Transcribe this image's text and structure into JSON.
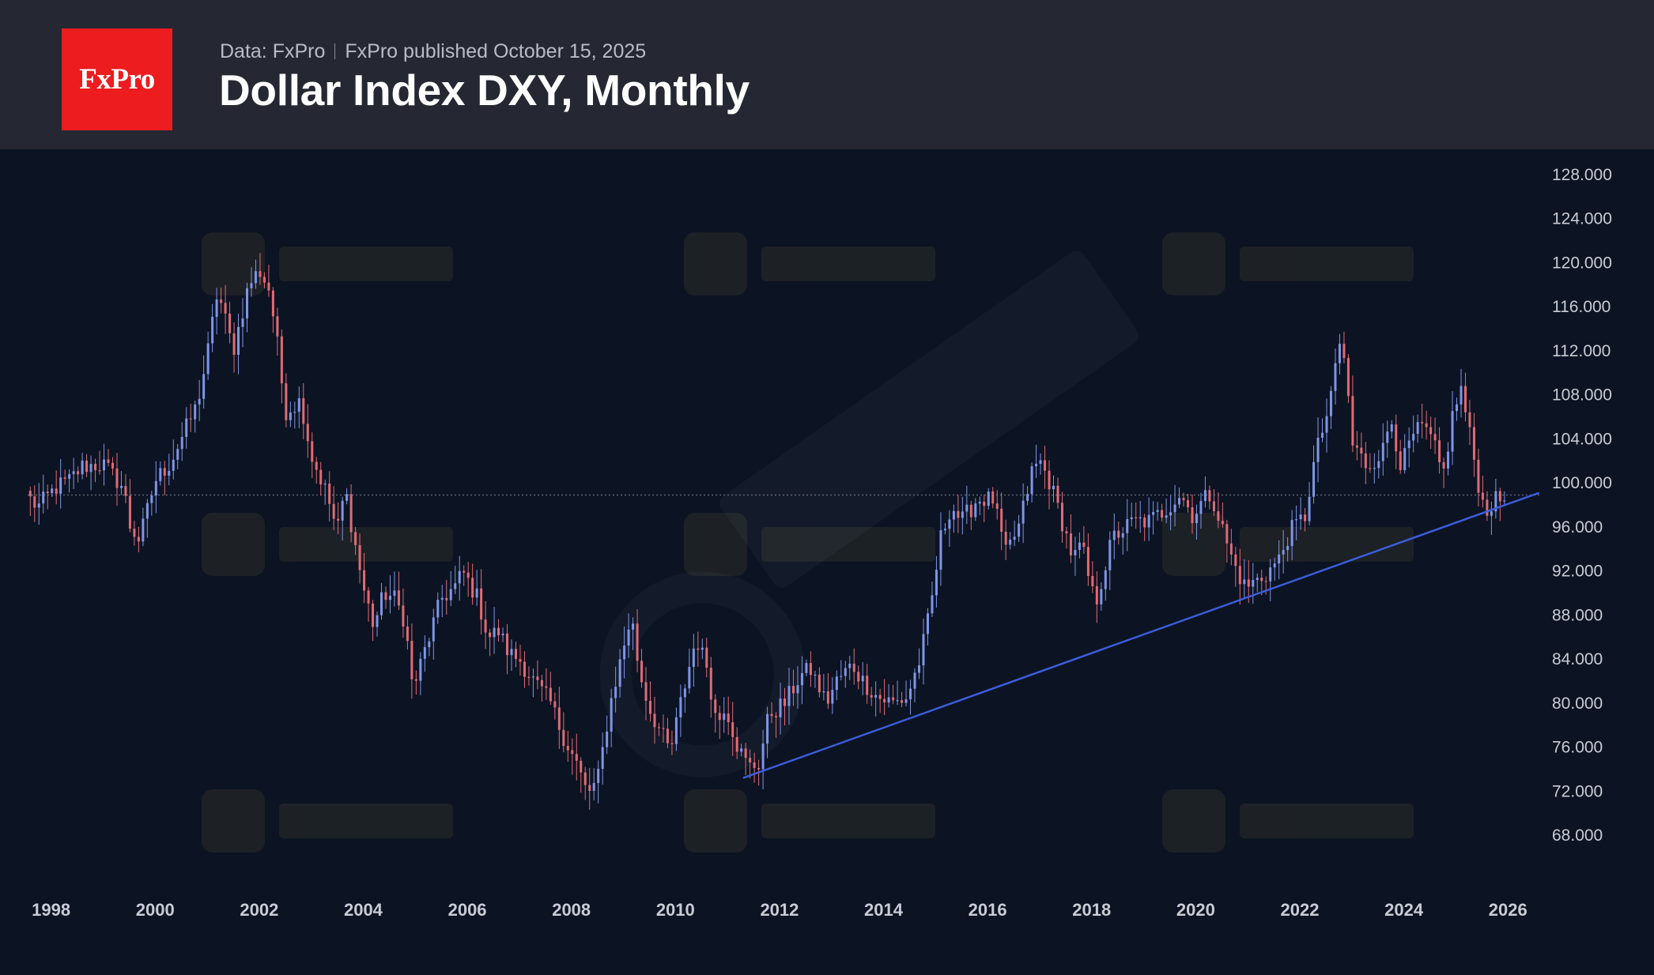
{
  "header": {
    "logo_text": "FxPro",
    "data_source": "Data: FxPro",
    "published": "FxPro published October 15, 2025",
    "title": "Dollar Index DXY, Monthly"
  },
  "colors": {
    "background": "#0c1423",
    "header_bg": "#252832",
    "logo_red": "#ec1c1f",
    "up_candle": "#7f95e6",
    "down_candle": "#e06b74",
    "trendline": "#3d5ee0",
    "reference_line": "#6b7080"
  },
  "chart_data": {
    "type": "candlestick",
    "title": "Dollar Index DXY, Monthly",
    "timeframe": "Monthly",
    "xlim": [
      1997.55,
      2026.65
    ],
    "ylim": [
      65.5,
      129.5
    ],
    "x_tick_labels": [
      "1998",
      "2000",
      "2002",
      "2004",
      "2006",
      "2008",
      "2010",
      "2012",
      "2014",
      "2016",
      "2018",
      "2020",
      "2022",
      "2024",
      "2026"
    ],
    "y_tick_labels": [
      "128.000",
      "124.000",
      "120.000",
      "116.000",
      "112.000",
      "108.000",
      "104.000",
      "100.000",
      "96.000",
      "92.000",
      "88.000",
      "84.000",
      "80.000",
      "76.000",
      "72.000",
      "68.000"
    ],
    "grid": false,
    "reference_line": {
      "value": 98.9,
      "style": "dotted"
    },
    "trendline": {
      "from": [
        2011.3,
        73.2
      ],
      "to": [
        2026.6,
        99.1
      ]
    },
    "close_path": [
      [
        1997.6,
        98.5
      ],
      [
        1997.75,
        97.8
      ],
      [
        1998.1,
        99.6
      ],
      [
        1998.35,
        100.2
      ],
      [
        1998.6,
        101.5
      ],
      [
        1999.0,
        101.7
      ],
      [
        1999.4,
        99.5
      ],
      [
        1999.5,
        96.2
      ],
      [
        1999.7,
        94.8
      ],
      [
        2000.0,
        100.2
      ],
      [
        2000.3,
        101.9
      ],
      [
        2000.5,
        104.0
      ],
      [
        2000.8,
        107.0
      ],
      [
        2001.0,
        111.5
      ],
      [
        2001.2,
        117.5
      ],
      [
        2001.5,
        112.0
      ],
      [
        2001.8,
        118.0
      ],
      [
        2002.0,
        119.3
      ],
      [
        2002.2,
        117.5
      ],
      [
        2002.35,
        112.5
      ],
      [
        2002.5,
        106.5
      ],
      [
        2002.8,
        107.5
      ],
      [
        2003.0,
        102.5
      ],
      [
        2003.3,
        99.0
      ],
      [
        2003.5,
        95.5
      ],
      [
        2003.65,
        99.5
      ],
      [
        2003.8,
        95.5
      ],
      [
        2004.0,
        90.5
      ],
      [
        2004.2,
        87.0
      ],
      [
        2004.4,
        90.0
      ],
      [
        2004.6,
        89.5
      ],
      [
        2004.8,
        87.5
      ],
      [
        2004.95,
        81.2
      ],
      [
        2005.2,
        85.0
      ],
      [
        2005.5,
        89.5
      ],
      [
        2005.8,
        90.7
      ],
      [
        2005.9,
        92.0
      ],
      [
        2006.2,
        89.5
      ],
      [
        2006.4,
        86.0
      ],
      [
        2006.6,
        86.5
      ],
      [
        2006.8,
        84.5
      ],
      [
        2007.0,
        84.0
      ],
      [
        2007.3,
        81.8
      ],
      [
        2007.6,
        80.0
      ],
      [
        2007.8,
        77.5
      ],
      [
        2008.1,
        74.5
      ],
      [
        2008.3,
        71.8
      ],
      [
        2008.5,
        72.8
      ],
      [
        2008.75,
        80.0
      ],
      [
        2009.0,
        85.0
      ],
      [
        2009.15,
        88.0
      ],
      [
        2009.3,
        83.0
      ],
      [
        2009.5,
        79.5
      ],
      [
        2009.7,
        77.5
      ],
      [
        2009.9,
        75.5
      ],
      [
        2010.1,
        80.0
      ],
      [
        2010.4,
        86.0
      ],
      [
        2010.5,
        84.5
      ],
      [
        2010.6,
        83.5
      ],
      [
        2010.8,
        78.0
      ],
      [
        2010.95,
        80.0
      ],
      [
        2011.2,
        76.0
      ],
      [
        2011.4,
        74.2
      ],
      [
        2011.6,
        74.5
      ],
      [
        2011.8,
        79.0
      ],
      [
        2012.1,
        80.0
      ],
      [
        2012.4,
        82.5
      ],
      [
        2012.6,
        83.0
      ],
      [
        2012.9,
        80.0
      ],
      [
        2013.1,
        82.0
      ],
      [
        2013.4,
        83.5
      ],
      [
        2013.6,
        82.0
      ],
      [
        2013.9,
        80.5
      ],
      [
        2014.2,
        80.0
      ],
      [
        2014.45,
        80.5
      ],
      [
        2014.7,
        84.0
      ],
      [
        2014.9,
        88.5
      ],
      [
        2015.1,
        95.0
      ],
      [
        2015.3,
        98.0
      ],
      [
        2015.5,
        96.5
      ],
      [
        2015.8,
        98.5
      ],
      [
        2015.95,
        98.5
      ],
      [
        2016.1,
        98.5
      ],
      [
        2016.35,
        93.5
      ],
      [
        2016.6,
        96.0
      ],
      [
        2016.85,
        101.0
      ],
      [
        2017.0,
        102.0
      ],
      [
        2017.2,
        100.0
      ],
      [
        2017.4,
        97.0
      ],
      [
        2017.65,
        93.0
      ],
      [
        2017.8,
        94.5
      ],
      [
        2018.0,
        90.0
      ],
      [
        2018.1,
        89.5
      ],
      [
        2018.4,
        95.0
      ],
      [
        2018.8,
        96.5
      ],
      [
        2019.1,
        96.5
      ],
      [
        2019.4,
        97.5
      ],
      [
        2019.7,
        99.0
      ],
      [
        2019.95,
        97.0
      ],
      [
        2020.15,
        98.5
      ],
      [
        2020.3,
        99.0
      ],
      [
        2020.5,
        96.0
      ],
      [
        2020.7,
        93.0
      ],
      [
        2020.95,
        90.5
      ],
      [
        2021.3,
        91.5
      ],
      [
        2021.6,
        93.0
      ],
      [
        2021.8,
        95.5
      ],
      [
        2022.1,
        97.0
      ],
      [
        2022.3,
        102.5
      ],
      [
        2022.6,
        107.5
      ],
      [
        2022.75,
        113.0
      ],
      [
        2022.9,
        110.0
      ],
      [
        2023.0,
        103.5
      ],
      [
        2023.3,
        101.5
      ],
      [
        2023.6,
        103.0
      ],
      [
        2023.75,
        106.0
      ],
      [
        2023.95,
        101.5
      ],
      [
        2024.2,
        104.5
      ],
      [
        2024.4,
        105.0
      ],
      [
        2024.6,
        103.0
      ],
      [
        2024.75,
        100.5
      ],
      [
        2024.95,
        106.5
      ],
      [
        2025.1,
        108.5
      ],
      [
        2025.3,
        103.5
      ],
      [
        2025.45,
        99.5
      ],
      [
        2025.55,
        97.5
      ],
      [
        2025.8,
        98.5
      ],
      [
        2025.95,
        98.5
      ]
    ]
  }
}
